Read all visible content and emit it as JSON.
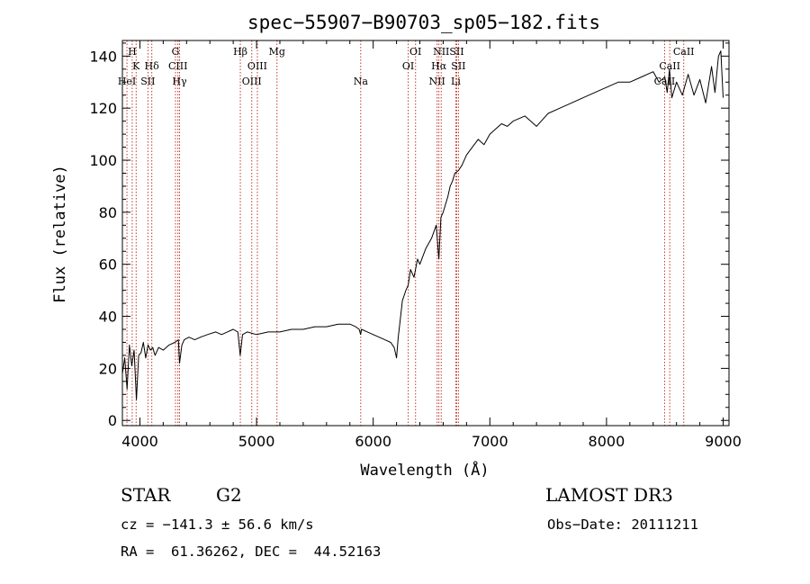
{
  "chart_data": {
    "type": "line",
    "title": "spec−55907−B90703_sp05−182.fits",
    "xlabel": "Wavelength (Å)",
    "ylabel": "Flux (relative)",
    "xlim": [
      3850,
      9050
    ],
    "ylim": [
      -2,
      146
    ],
    "x_ticks": [
      4000,
      5000,
      6000,
      7000,
      8000,
      9000
    ],
    "y_ticks": [
      0,
      20,
      40,
      60,
      80,
      100,
      120,
      140
    ],
    "series": [
      {
        "name": "flux",
        "x": [
          3850,
          3870,
          3890,
          3910,
          3930,
          3950,
          3970,
          3990,
          4010,
          4030,
          4050,
          4070,
          4090,
          4110,
          4130,
          4160,
          4200,
          4250,
          4300,
          4330,
          4340,
          4360,
          4380,
          4420,
          4470,
          4520,
          4580,
          4650,
          4700,
          4750,
          4800,
          4840,
          4860,
          4880,
          4920,
          5000,
          5100,
          5200,
          5300,
          5400,
          5500,
          5600,
          5700,
          5800,
          5850,
          5880,
          5892,
          5900,
          5950,
          6000,
          6050,
          6100,
          6150,
          6180,
          6200,
          6215,
          6230,
          6250,
          6280,
          6300,
          6320,
          6350,
          6380,
          6400,
          6450,
          6500,
          6540,
          6563,
          6580,
          6600,
          6640,
          6660,
          6680,
          6700,
          6730,
          6760,
          6800,
          6850,
          6900,
          6950,
          7000,
          7050,
          7100,
          7150,
          7200,
          7300,
          7400,
          7500,
          7600,
          7700,
          7800,
          7900,
          8000,
          8100,
          8200,
          8300,
          8400,
          8450,
          8500,
          8520,
          8540,
          8560,
          8600,
          8650,
          8700,
          8750,
          8800,
          8850,
          8900,
          8930,
          8960,
          8980,
          9000
        ],
        "values": [
          18,
          24,
          12,
          29,
          21,
          27,
          8,
          25,
          26,
          30,
          24,
          29,
          27,
          28,
          25,
          28,
          27,
          29,
          30,
          31,
          22,
          29,
          31,
          32,
          31,
          32,
          33,
          34,
          33,
          34,
          35,
          34,
          25,
          33,
          34,
          33,
          34,
          34,
          35,
          35,
          36,
          36,
          37,
          37,
          36,
          35,
          33,
          35,
          34,
          33,
          32,
          31,
          30,
          28,
          24,
          32,
          38,
          46,
          50,
          52,
          58,
          55,
          62,
          60,
          66,
          70,
          75,
          62,
          78,
          80,
          86,
          90,
          92,
          95,
          96,
          98,
          102,
          105,
          108,
          106,
          110,
          112,
          114,
          113,
          115,
          117,
          113,
          118,
          120,
          122,
          124,
          126,
          128,
          130,
          130,
          132,
          134,
          130,
          132,
          126,
          135,
          124,
          130,
          125,
          133,
          125,
          131,
          122,
          136,
          126,
          140,
          142,
          124
        ]
      }
    ],
    "annotations": [
      {
        "label": "H",
        "x": 3934,
        "row": 1
      },
      {
        "label": "K",
        "x": 3968,
        "row": 2
      },
      {
        "label": "HeI",
        "x": 3889,
        "row": 3
      },
      {
        "label": "SII",
        "x": 4069,
        "row": 3
      },
      {
        "label": "Hδ",
        "x": 4102,
        "row": 2
      },
      {
        "label": "G",
        "x": 4305,
        "row": 1
      },
      {
        "label": "CIII",
        "x": 4326,
        "row": 2
      },
      {
        "label": "Hγ",
        "x": 4340,
        "row": 3
      },
      {
        "label": "Hβ",
        "x": 4861,
        "row": 1
      },
      {
        "label": "OIII",
        "x": 4959,
        "row": 3
      },
      {
        "label": "OIII",
        "x": 5007,
        "row": 2
      },
      {
        "label": "Mg",
        "x": 5175,
        "row": 1
      },
      {
        "label": "Na",
        "x": 5893,
        "row": 3
      },
      {
        "label": "OI",
        "x": 6300,
        "row": 2
      },
      {
        "label": "OI",
        "x": 6363,
        "row": 1
      },
      {
        "label": "NII",
        "x": 6548,
        "row": 3
      },
      {
        "label": "NII",
        "x": 6583,
        "row": 1
      },
      {
        "label": "Hα",
        "x": 6563,
        "row": 2
      },
      {
        "label": "SII",
        "x": 6716,
        "row": 1
      },
      {
        "label": "SII",
        "x": 6731,
        "row": 2
      },
      {
        "label": "Li",
        "x": 6708,
        "row": 3
      },
      {
        "label": "CaII",
        "x": 8498,
        "row": 3
      },
      {
        "label": "CaII",
        "x": 8542,
        "row": 2
      },
      {
        "label": "CaII",
        "x": 8662,
        "row": 1
      }
    ]
  },
  "info": {
    "class_label": "STAR",
    "subclass_label": "G2",
    "survey_label": "LAMOST DR3",
    "redshift_text": "cz = −141.3 ± 56.6 km/s",
    "obs_date_text": "Obs−Date: 20111211",
    "coords_text": "RA =  61.36262, DEC =  44.52163"
  },
  "colors": {
    "line_marker": "#c0392b",
    "spectrum": "#000000"
  }
}
